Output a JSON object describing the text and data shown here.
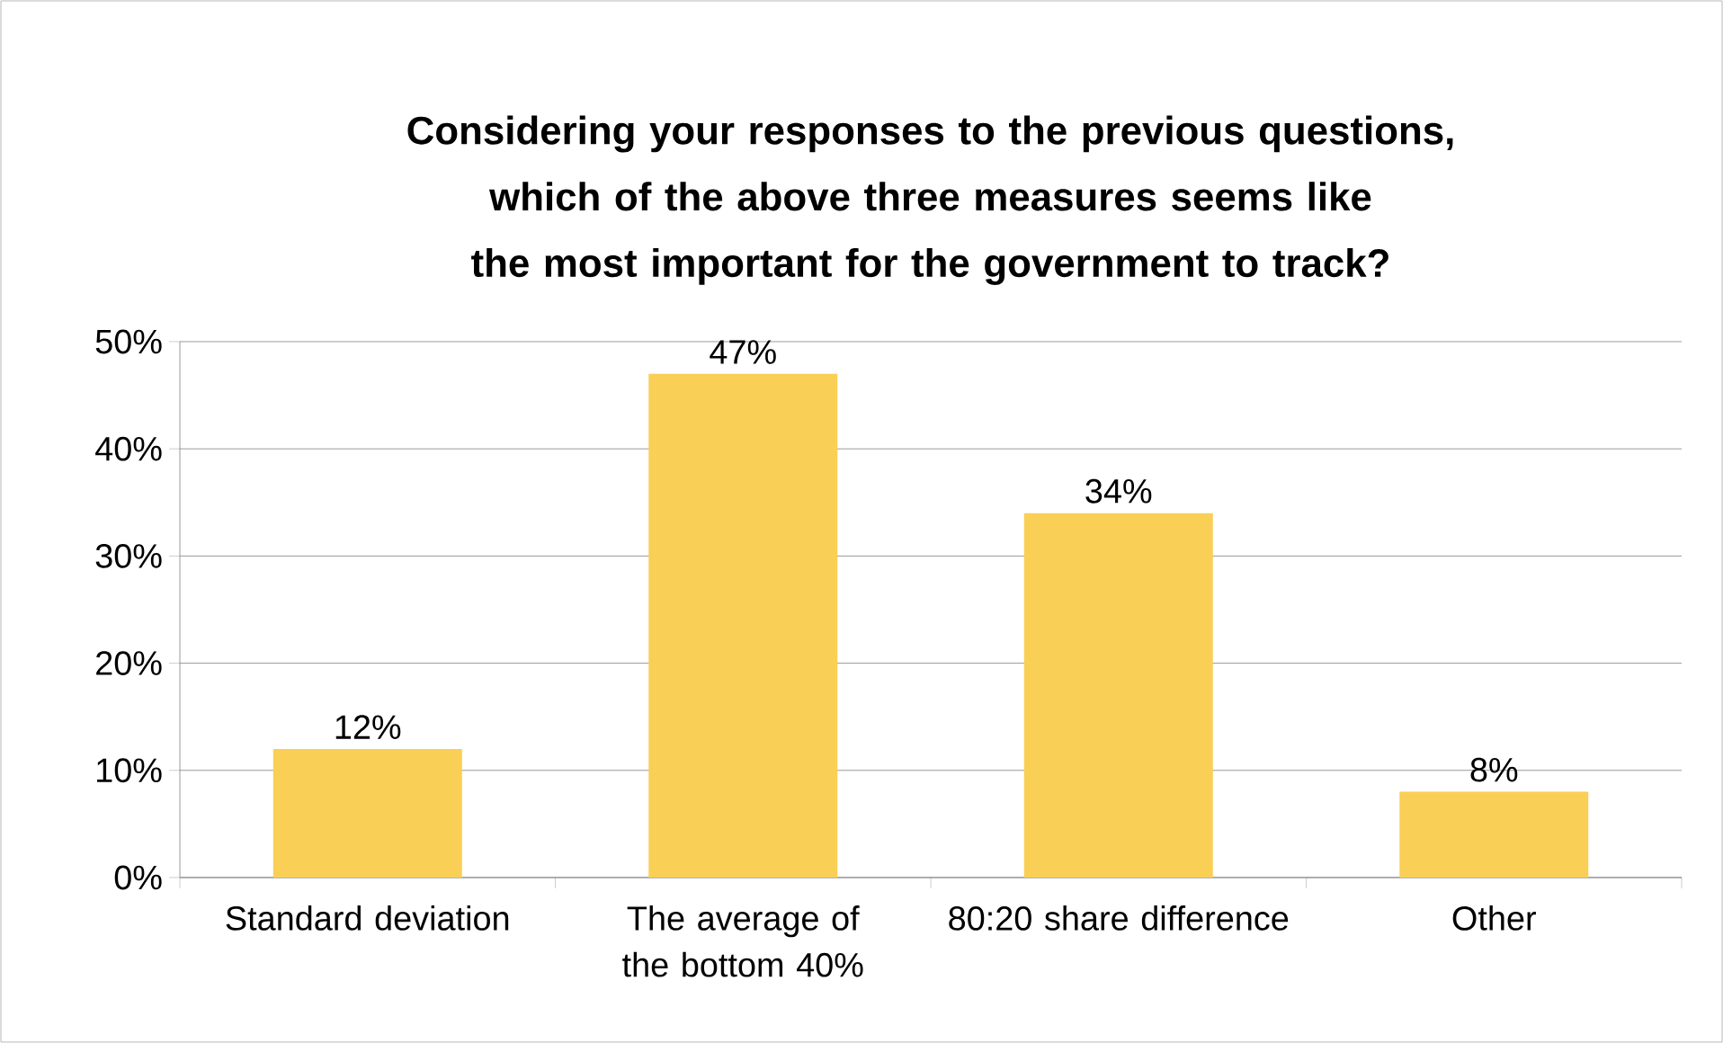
{
  "chart_data": {
    "type": "bar",
    "title": "Considering your responses to the previous questions, which of the above three measures seems like the most important for the government to track?",
    "categories": [
      "Standard deviation",
      "The average of the bottom 40%",
      "80:20 share difference",
      "Other"
    ],
    "values": [
      12,
      47,
      34,
      8
    ],
    "value_labels": [
      "12%",
      "47%",
      "34%",
      "8%"
    ],
    "color": "#f9cf55",
    "ylim": [
      0,
      50
    ],
    "yticks": [
      {
        "value": 0,
        "label": "0%"
      },
      {
        "value": 10,
        "label": "10%"
      },
      {
        "value": 20,
        "label": "20%"
      },
      {
        "value": 30,
        "label": "30%"
      },
      {
        "value": 40,
        "label": "40%"
      },
      {
        "value": 50,
        "label": "50%"
      }
    ],
    "grid": "y"
  }
}
